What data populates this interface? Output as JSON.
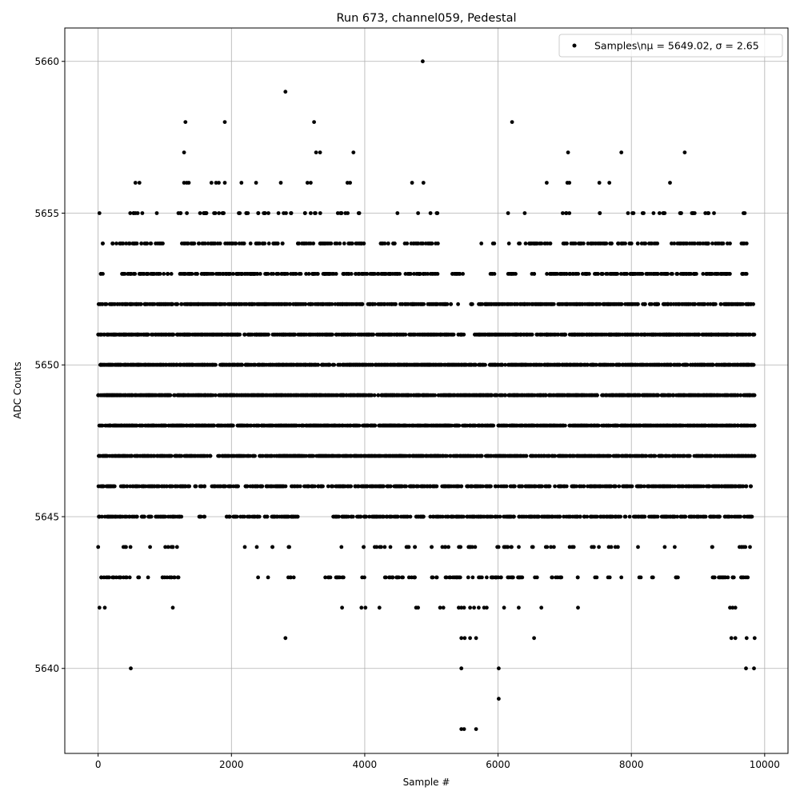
{
  "chart_data": {
    "type": "scatter",
    "title": "Run 673, channel059, Pedestal",
    "xlabel": "Sample #",
    "ylabel": "ADC Counts",
    "xlim": [
      -500,
      10350
    ],
    "ylim": [
      5637.2,
      5661.1
    ],
    "xticks": [
      0,
      2000,
      4000,
      6000,
      8000,
      10000
    ],
    "xtick_labels": [
      "0",
      "2000",
      "4000",
      "6000",
      "8000",
      "10000"
    ],
    "yticks": [
      5640,
      5645,
      5650,
      5655,
      5660
    ],
    "ytick_labels": [
      "5640",
      "5645",
      "5650",
      "5655",
      "5660"
    ],
    "grid": true,
    "legend": {
      "placement": "top-right",
      "label": "Samples\\nμ = 5649.02, σ = 2.65"
    },
    "marker_color": "#000000",
    "series": [
      {
        "name": "Samples",
        "note": "integer ADC levels; dense levels given as sample-index ranges with approx points per 1000 samples",
        "points": [
          [
            4870,
            5660
          ],
          [
            2810,
            5659
          ],
          [
            1310,
            5658
          ],
          [
            1900,
            5658
          ],
          [
            3240,
            5658
          ],
          [
            6210,
            5658
          ],
          [
            1290,
            5657
          ],
          [
            3270,
            5657
          ],
          [
            3330,
            5657
          ],
          [
            3830,
            5657
          ],
          [
            7050,
            5657
          ],
          [
            7850,
            5657
          ],
          [
            8800,
            5657
          ],
          [
            560,
            5656
          ],
          [
            620,
            5656
          ],
          [
            1290,
            5656
          ],
          [
            1330,
            5656
          ],
          [
            1360,
            5656
          ],
          [
            1700,
            5656
          ],
          [
            1770,
            5656
          ],
          [
            1810,
            5656
          ],
          [
            1900,
            5656
          ],
          [
            2150,
            5656
          ],
          [
            2370,
            5656
          ],
          [
            2740,
            5656
          ],
          [
            3140,
            5656
          ],
          [
            3190,
            5656
          ],
          [
            3740,
            5656
          ],
          [
            3780,
            5656
          ],
          [
            4710,
            5656
          ],
          [
            4880,
            5656
          ],
          [
            6730,
            5656
          ],
          [
            7040,
            5656
          ],
          [
            7070,
            5656
          ],
          [
            7520,
            5656
          ],
          [
            7670,
            5656
          ],
          [
            8580,
            5656
          ],
          [
            20,
            5642
          ],
          [
            100,
            5642
          ],
          [
            1120,
            5642
          ],
          [
            3660,
            5642
          ],
          [
            3950,
            5642
          ],
          [
            4010,
            5642
          ],
          [
            4220,
            5642
          ],
          [
            4770,
            5642
          ],
          [
            4800,
            5642
          ],
          [
            5130,
            5642
          ],
          [
            5180,
            5642
          ],
          [
            5410,
            5642
          ],
          [
            5450,
            5642
          ],
          [
            5490,
            5642
          ],
          [
            5580,
            5642
          ],
          [
            5640,
            5642
          ],
          [
            5710,
            5642
          ],
          [
            5790,
            5642
          ],
          [
            5830,
            5642
          ],
          [
            6090,
            5642
          ],
          [
            6310,
            5642
          ],
          [
            6650,
            5642
          ],
          [
            7200,
            5642
          ],
          [
            9480,
            5642
          ],
          [
            9520,
            5642
          ],
          [
            9560,
            5642
          ],
          [
            2810,
            5641
          ],
          [
            5450,
            5641
          ],
          [
            5500,
            5641
          ],
          [
            5580,
            5641
          ],
          [
            5670,
            5641
          ],
          [
            6540,
            5641
          ],
          [
            9500,
            5641
          ],
          [
            9560,
            5641
          ],
          [
            9730,
            5641
          ],
          [
            9850,
            5641
          ],
          [
            490,
            5640
          ],
          [
            5450,
            5640
          ],
          [
            6010,
            5640
          ],
          [
            9720,
            5640
          ],
          [
            9840,
            5640
          ],
          [
            6010,
            5639
          ],
          [
            5450,
            5638
          ],
          [
            5490,
            5638
          ],
          [
            5670,
            5638
          ]
        ],
        "levels": [
          {
            "y": 5655,
            "density": 25,
            "ranges": [
              [
                20,
                20
              ],
              [
                480,
                700
              ],
              [
                880,
                880
              ],
              [
                1200,
                1350
              ],
              [
                1450,
                2000
              ],
              [
                2100,
                2300
              ],
              [
                2380,
                2600
              ],
              [
                2700,
                2900
              ],
              [
                3100,
                3350
              ],
              [
                3580,
                3800
              ],
              [
                3900,
                3950
              ],
              [
                4490,
                4490
              ],
              [
                4800,
                4800
              ],
              [
                4980,
                5100
              ],
              [
                6150,
                6150
              ],
              [
                6400,
                6400
              ],
              [
                6960,
                7100
              ],
              [
                7500,
                7550
              ],
              [
                7950,
                8050
              ],
              [
                8150,
                8200
              ],
              [
                8300,
                8500
              ],
              [
                8650,
                8750
              ],
              [
                8850,
                9000
              ],
              [
                9100,
                9250
              ],
              [
                9650,
                9720
              ]
            ]
          },
          {
            "y": 5654,
            "density": 45,
            "ranges": [
              [
                30,
                80
              ],
              [
                200,
                400
              ],
              [
                400,
                1000
              ],
              [
                1250,
                2200
              ],
              [
                2250,
                2500
              ],
              [
                2550,
                2800
              ],
              [
                2950,
                3500
              ],
              [
                3550,
                4000
              ],
              [
                4200,
                4450
              ],
              [
                4600,
                5100
              ],
              [
                5750,
                5750
              ],
              [
                5920,
                5950
              ],
              [
                6150,
                6700
              ],
              [
                6700,
                6800
              ],
              [
                6950,
                8400
              ],
              [
                8600,
                9500
              ],
              [
                9650,
                9750
              ]
            ]
          },
          {
            "y": 5653,
            "density": 55,
            "ranges": [
              [
                30,
                80
              ],
              [
                350,
                1100
              ],
              [
                1200,
                3800
              ],
              [
                3800,
                4550
              ],
              [
                4600,
                5100
              ],
              [
                5300,
                5500
              ],
              [
                5880,
                5950
              ],
              [
                6150,
                6300
              ],
              [
                6500,
                6550
              ],
              [
                6700,
                9500
              ],
              [
                9650,
                9750
              ]
            ]
          },
          {
            "y": 5652,
            "density": 75,
            "ranges": [
              [
                0,
                5300
              ],
              [
                5400,
                5400
              ],
              [
                5580,
                5650
              ],
              [
                5700,
                9850
              ]
            ]
          },
          {
            "y": 5651,
            "density": 95,
            "ranges": [
              [
                0,
                5350
              ],
              [
                5400,
                5500
              ],
              [
                5650,
                9850
              ]
            ]
          },
          {
            "y": 5650,
            "density": 110,
            "ranges": [
              [
                20,
                9850
              ]
            ]
          },
          {
            "y": 5649,
            "density": 120,
            "ranges": [
              [
                0,
                9850
              ]
            ]
          },
          {
            "y": 5648,
            "density": 110,
            "ranges": [
              [
                0,
                9850
              ]
            ]
          },
          {
            "y": 5647,
            "density": 95,
            "ranges": [
              [
                0,
                1700
              ],
              [
                1800,
                9850
              ]
            ]
          },
          {
            "y": 5646,
            "density": 65,
            "ranges": [
              [
                0,
                1400
              ],
              [
                1450,
                1600
              ],
              [
                1700,
                2100
              ],
              [
                2200,
                3400
              ],
              [
                3450,
                9850
              ]
            ]
          },
          {
            "y": 5645,
            "density": 55,
            "ranges": [
              [
                0,
                1300
              ],
              [
                1500,
                1600
              ],
              [
                1900,
                3000
              ],
              [
                3500,
                4900
              ],
              [
                4950,
                9850
              ]
            ]
          },
          {
            "y": 5644,
            "density": 25,
            "ranges": [
              [
                0,
                0
              ],
              [
                350,
                500
              ],
              [
                780,
                780
              ],
              [
                1000,
                1250
              ],
              [
                2200,
                2200
              ],
              [
                2380,
                2380
              ],
              [
                2600,
                2650
              ],
              [
                2850,
                2880
              ],
              [
                3650,
                3650
              ],
              [
                3950,
                4000
              ],
              [
                4150,
                4400
              ],
              [
                4600,
                4700
              ],
              [
                4750,
                4800
              ],
              [
                5000,
                5050
              ],
              [
                5150,
                5300
              ],
              [
                5400,
                5500
              ],
              [
                5550,
                5800
              ],
              [
                5950,
                6350
              ],
              [
                6500,
                6550
              ],
              [
                6700,
                6850
              ],
              [
                7050,
                7150
              ],
              [
                7400,
                7550
              ],
              [
                7650,
                7800
              ],
              [
                8100,
                8100
              ],
              [
                8500,
                8500
              ],
              [
                8650,
                8650
              ],
              [
                9200,
                9250
              ],
              [
                9600,
                9850
              ]
            ]
          },
          {
            "y": 5643,
            "density": 35,
            "ranges": [
              [
                0,
                500
              ],
              [
                600,
                650
              ],
              [
                750,
                750
              ],
              [
                950,
                1250
              ],
              [
                2400,
                2400
              ],
              [
                2550,
                2550
              ],
              [
                2850,
                2950
              ],
              [
                3400,
                3700
              ],
              [
                3950,
                4000
              ],
              [
                4300,
                4800
              ],
              [
                4950,
                5100
              ],
              [
                5200,
                6400
              ],
              [
                6550,
                6600
              ],
              [
                6800,
                7000
              ],
              [
                7150,
                7200
              ],
              [
                7450,
                7500
              ],
              [
                7650,
                7700
              ],
              [
                7850,
                7850
              ],
              [
                8100,
                8150
              ],
              [
                8300,
                8350
              ],
              [
                8600,
                8700
              ],
              [
                9200,
                9850
              ]
            ]
          }
        ]
      }
    ]
  }
}
